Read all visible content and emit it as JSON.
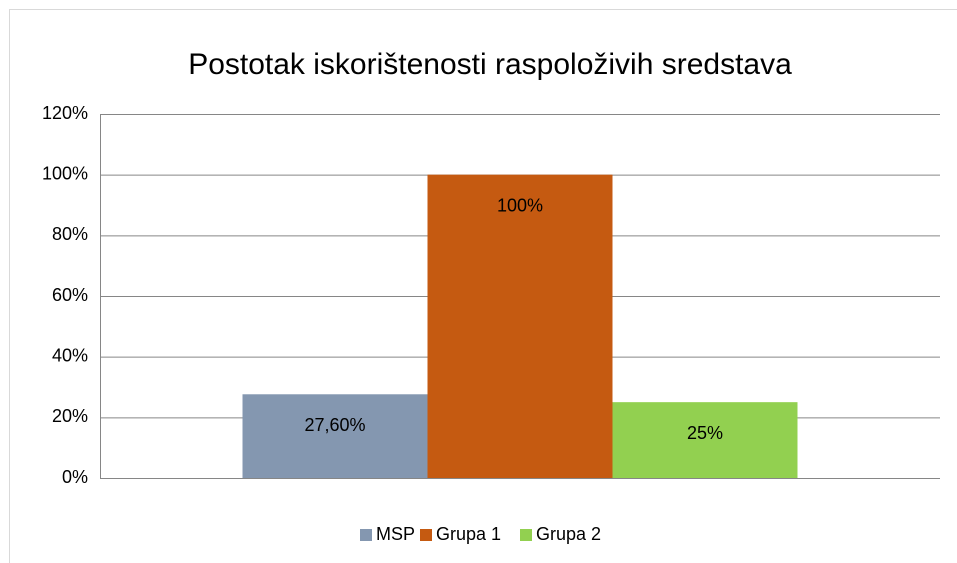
{
  "chart_data": {
    "type": "bar",
    "title": "Postotak iskorištenosti raspoloživih sredstava",
    "categories": [
      null
    ],
    "series": [
      {
        "name": "MSP",
        "color": "#8497b0",
        "values": [
          27.6
        ],
        "value_labels": [
          "27,60%"
        ]
      },
      {
        "name": "Grupa 1",
        "color": "#c55a11",
        "values": [
          100
        ],
        "value_labels": [
          "100%"
        ]
      },
      {
        "name": "Grupa 2",
        "color": "#92d050",
        "values": [
          25
        ],
        "value_labels": [
          "25%"
        ]
      }
    ],
    "ylim": [
      0,
      120
    ],
    "yticks": [
      {
        "value": 0,
        "label": "0%"
      },
      {
        "value": 20,
        "label": "20%"
      },
      {
        "value": 40,
        "label": "40%"
      },
      {
        "value": 60,
        "label": "60%"
      },
      {
        "value": 80,
        "label": "80%"
      },
      {
        "value": 100,
        "label": "100%"
      },
      {
        "value": 120,
        "label": "120%"
      }
    ],
    "grid": true,
    "legend": "bottom"
  }
}
